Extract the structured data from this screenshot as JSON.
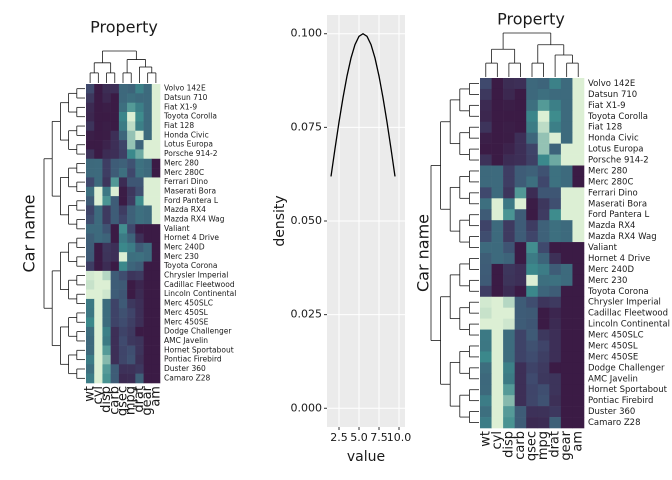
{
  "chart_data": [
    {
      "type": "heatmap",
      "title": "Property",
      "ylabel": "Car name",
      "colors": [
        "#3b1b45",
        "#3f4a6e",
        "#3b8a8c",
        "#dcefd4"
      ],
      "columns": [
        "wt",
        "cyl",
        "disp",
        "carb",
        "qsec",
        "mpg",
        "drat",
        "gear",
        "am"
      ],
      "rows": [
        "Volvo 142E",
        "Datsun 710",
        "Fiat X1-9",
        "Toyota Corolla",
        "Fiat 128",
        "Honda Civic",
        "Lotus Europa",
        "Porsche 914-2",
        "Merc 280",
        "Merc 280C",
        "Ferrari Dino",
        "Maserati Bora",
        "Ford Pantera L",
        "Mazda RX4",
        "Mazda RX4 Wag",
        "Valiant",
        "Hornet 4 Drive",
        "Merc 240D",
        "Merc 230",
        "Toyota Corona",
        "Chrysler Imperial",
        "Cadillac Fleetwood",
        "Lincoln Continental",
        "Merc 450SLC",
        "Merc 450SL",
        "Merc 450SE",
        "Dodge Challenger",
        "AMC Javelin",
        "Hornet Sportabout",
        "Pontiac Firebird",
        "Duster 360",
        "Camaro Z28"
      ],
      "values": [
        [
          2.78,
          4,
          121,
          2,
          18.6,
          21.4,
          4.11,
          4,
          1
        ],
        [
          2.32,
          4,
          108,
          1,
          18.61,
          22.8,
          3.85,
          4,
          1
        ],
        [
          1.935,
          4,
          79,
          1,
          18.9,
          27.3,
          4.08,
          4,
          1
        ],
        [
          1.835,
          4,
          71.1,
          1,
          19.9,
          33.9,
          4.22,
          4,
          1
        ],
        [
          2.2,
          4,
          78.7,
          1,
          19.47,
          32.4,
          4.08,
          4,
          1
        ],
        [
          1.615,
          4,
          75.7,
          2,
          18.52,
          30.4,
          4.93,
          4,
          1
        ],
        [
          1.513,
          4,
          95.1,
          2,
          16.9,
          30.4,
          3.77,
          5,
          1
        ],
        [
          2.14,
          4,
          120.3,
          2,
          16.7,
          26,
          4.43,
          5,
          1
        ],
        [
          3.44,
          6,
          167.6,
          4,
          18.3,
          19.2,
          3.92,
          4,
          0
        ],
        [
          3.44,
          6,
          167.6,
          4,
          18.9,
          17.8,
          3.92,
          4,
          0
        ],
        [
          2.77,
          6,
          145,
          6,
          15.5,
          19.7,
          3.62,
          5,
          1
        ],
        [
          3.57,
          8,
          301,
          8,
          14.6,
          15,
          3.54,
          5,
          1
        ],
        [
          3.17,
          8,
          351,
          4,
          14.5,
          15.8,
          4.22,
          5,
          1
        ],
        [
          2.62,
          6,
          160,
          4,
          16.46,
          21,
          3.9,
          4,
          1
        ],
        [
          2.875,
          6,
          160,
          4,
          17.02,
          21,
          3.9,
          4,
          1
        ],
        [
          3.46,
          6,
          225,
          1,
          20.22,
          18.1,
          2.76,
          3,
          0
        ],
        [
          3.215,
          6,
          258,
          1,
          19.44,
          21.4,
          3.08,
          3,
          0
        ],
        [
          3.19,
          4,
          146.7,
          2,
          20,
          24.4,
          3.69,
          4,
          0
        ],
        [
          3.15,
          4,
          140.8,
          2,
          22.9,
          22.8,
          3.92,
          4,
          0
        ],
        [
          2.465,
          4,
          120.1,
          1,
          20.01,
          21.5,
          3.7,
          3,
          0
        ],
        [
          5.345,
          8,
          440,
          4,
          17.42,
          14.7,
          3.23,
          3,
          0
        ],
        [
          5.25,
          8,
          472,
          4,
          17.98,
          10.4,
          2.93,
          3,
          0
        ],
        [
          5.424,
          8,
          460,
          4,
          17.82,
          10.4,
          3,
          3,
          0
        ],
        [
          3.78,
          8,
          275.8,
          3,
          18,
          15.2,
          3.07,
          3,
          0
        ],
        [
          3.73,
          8,
          275.8,
          3,
          17.6,
          17.3,
          3.07,
          3,
          0
        ],
        [
          4.07,
          8,
          275.8,
          3,
          17.4,
          16.4,
          3.07,
          3,
          0
        ],
        [
          3.52,
          8,
          318,
          2,
          16.87,
          15.5,
          2.76,
          3,
          0
        ],
        [
          3.435,
          8,
          304,
          2,
          17.3,
          15.2,
          3.15,
          3,
          0
        ],
        [
          3.44,
          8,
          360,
          2,
          17.02,
          18.7,
          3.15,
          3,
          0
        ],
        [
          3.845,
          8,
          400,
          2,
          17.05,
          19.2,
          3.08,
          3,
          0
        ],
        [
          3.57,
          8,
          360,
          4,
          15.84,
          14.3,
          3.21,
          3,
          0
        ],
        [
          3.84,
          8,
          350,
          4,
          15.41,
          13.3,
          3.73,
          3,
          0
        ]
      ]
    },
    {
      "type": "density",
      "xlabel": "value",
      "ylabel": "density",
      "color": "#000000",
      "grid": true,
      "x": [
        1.5,
        2,
        2.5,
        3,
        3.5,
        4,
        4.5,
        5,
        5.5,
        6,
        6.5,
        7,
        7.5,
        8,
        8.5,
        9,
        9.5
      ],
      "values": [
        0.0619,
        0.0693,
        0.0764,
        0.0829,
        0.0887,
        0.0935,
        0.0971,
        0.0993,
        0.1,
        0.0993,
        0.0971,
        0.0935,
        0.0887,
        0.0829,
        0.0764,
        0.0693,
        0.0619
      ],
      "xlim": [
        1.0,
        10.75
      ],
      "ylim": [
        -0.005,
        0.105
      ],
      "xticks": [
        2.5,
        {
          "value": 5,
          "label": "5.0"
        },
        7.5,
        {
          "value": 10,
          "label": "10.0"
        }
      ],
      "yticks": [
        {
          "value": 0,
          "label": "0.000"
        },
        {
          "value": 0.025,
          "label": "0.025"
        },
        {
          "value": 0.05,
          "label": "0.050"
        },
        {
          "value": 0.075,
          "label": "0.075"
        },
        {
          "value": 0.1,
          "label": "0.100"
        }
      ]
    },
    {
      "type": "heatmap",
      "title": "Property",
      "ylabel": "Car name",
      "columns": [
        "wt",
        "cyl",
        "disp",
        "carb",
        "qsec",
        "mpg",
        "drat",
        "gear",
        "am"
      ],
      "rows": [
        "Volvo 142E",
        "Datsun 710",
        "Fiat X1-9",
        "Toyota Corolla",
        "Fiat 128",
        "Honda Civic",
        "Lotus Europa",
        "Porsche 914-2",
        "Merc 280",
        "Merc 280C",
        "Ferrari Dino",
        "Maserati Bora",
        "Ford Pantera L",
        "Mazda RX4",
        "Mazda RX4 Wag",
        "Valiant",
        "Hornet 4 Drive",
        "Merc 240D",
        "Merc 230",
        "Toyota Corona",
        "Chrysler Imperial",
        "Cadillac Fleetwood",
        "Lincoln Continental",
        "Merc 450SLC",
        "Merc 450SL",
        "Merc 450SE",
        "Dodge Challenger",
        "AMC Javelin",
        "Hornet Sportabout",
        "Pontiac Firebird",
        "Duster 360",
        "Camaro Z28"
      ]
    }
  ]
}
